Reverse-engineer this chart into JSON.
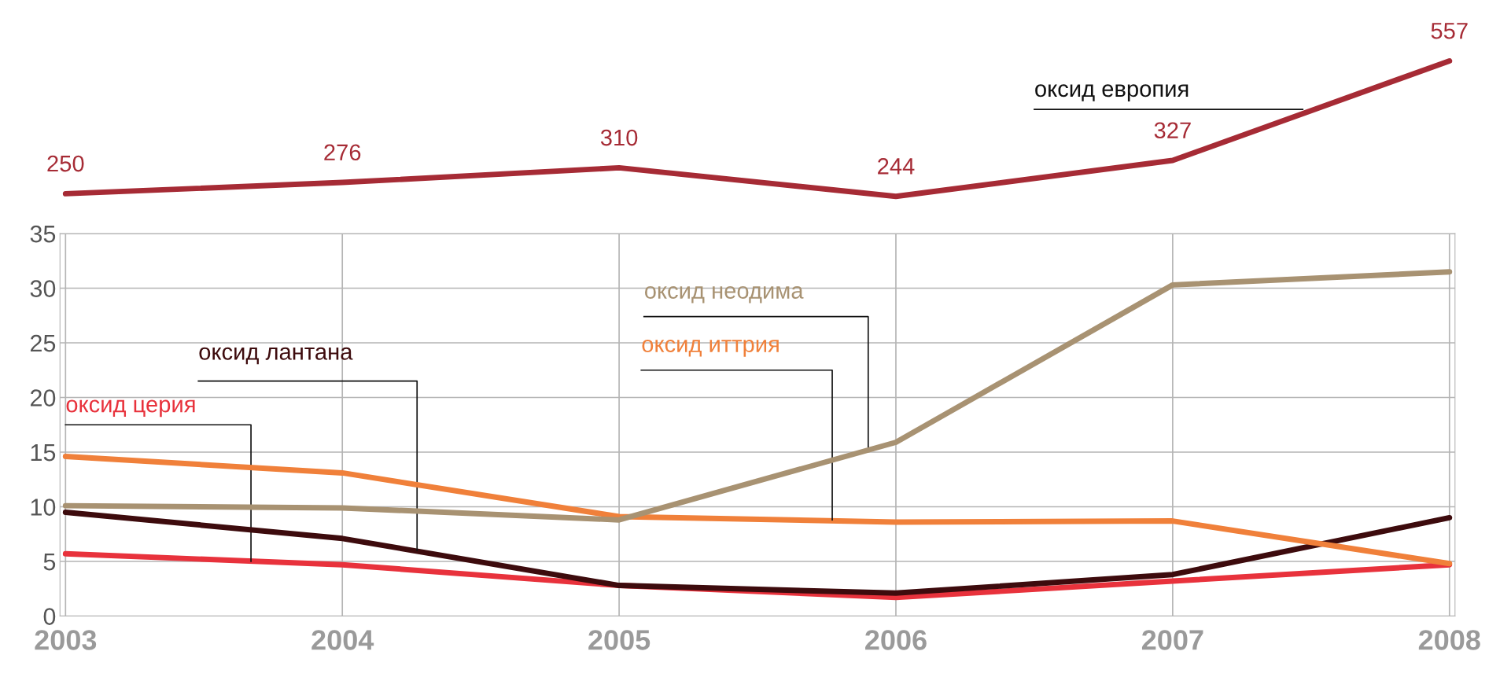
{
  "chart_data": [
    {
      "type": "line",
      "categories": [
        "2003",
        "2004",
        "2005",
        "2006",
        "2007",
        "2008"
      ],
      "tick_labels": false,
      "data_labels": true,
      "grid": false,
      "legend": false,
      "series": [
        {
          "name": "оксид европия",
          "color": "#a62b35",
          "values": [
            250,
            276,
            310,
            244,
            327,
            557
          ]
        }
      ]
    },
    {
      "type": "line",
      "categories": [
        "2003",
        "2004",
        "2005",
        "2006",
        "2007",
        "2008"
      ],
      "ylim": [
        0,
        35
      ],
      "yticks": [
        0,
        5,
        10,
        15,
        20,
        25,
        30,
        35
      ],
      "grid": true,
      "legend": false,
      "series": [
        {
          "name": "оксид церия",
          "color": "#e8323c",
          "values": [
            5.7,
            4.7,
            2.8,
            1.7,
            3.2,
            4.7
          ]
        },
        {
          "name": "оксид лантана",
          "color": "#3d0b0d",
          "values": [
            9.5,
            7.1,
            2.8,
            2.1,
            3.8,
            9.0
          ]
        },
        {
          "name": "оксид иттрия",
          "color": "#f0803a",
          "values": [
            14.6,
            13.1,
            9.1,
            8.6,
            8.7,
            4.8
          ]
        },
        {
          "name": "оксид неодима",
          "color": "#a89272",
          "values": [
            10.1,
            9.9,
            8.8,
            15.9,
            30.3,
            31.5
          ]
        }
      ]
    }
  ]
}
